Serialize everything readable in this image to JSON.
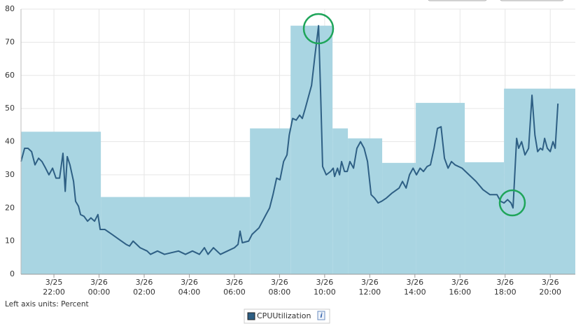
{
  "chart_data": {
    "type": "line",
    "axis_note": "Left axis units: Percent",
    "xlim": [
      20.54,
      45.11
    ],
    "ylim": [
      0,
      80
    ],
    "yticks": [
      0,
      10,
      20,
      30,
      40,
      50,
      60,
      70,
      80
    ],
    "xticks": [
      {
        "value": 22,
        "label": "3/25 22:00"
      },
      {
        "value": 24,
        "label": "3/26 00:00"
      },
      {
        "value": 26,
        "label": "3/26 02:00"
      },
      {
        "value": 28,
        "label": "3/26 04:00"
      },
      {
        "value": 30,
        "label": "3/26 06:00"
      },
      {
        "value": 32,
        "label": "3/26 08:00"
      },
      {
        "value": 34,
        "label": "3/26 10:00"
      },
      {
        "value": 36,
        "label": "3/26 12:00"
      },
      {
        "value": 38,
        "label": "3/26 14:00"
      },
      {
        "value": 40,
        "label": "3/26 16:00"
      },
      {
        "value": 42,
        "label": "3/26 18:00"
      },
      {
        "value": 44,
        "label": "3/26 20:00"
      }
    ],
    "grid": true,
    "step_area": {
      "color": "#a9d5e2",
      "edges": [
        20.54,
        24.08,
        30.69,
        32.49,
        34.35,
        35.03,
        36.55,
        38.04,
        40.21,
        41.95,
        45.11
      ],
      "values": [
        43,
        23.3,
        44,
        75,
        44,
        41,
        33.6,
        51.7,
        33.8,
        56
      ]
    },
    "x": [
      20.54,
      20.7,
      20.85,
      21.01,
      21.16,
      21.32,
      21.47,
      21.63,
      21.78,
      21.94,
      22.09,
      22.25,
      22.4,
      22.5,
      22.59,
      22.71,
      22.87,
      22.96,
      23.09,
      23.18,
      23.33,
      23.49,
      23.64,
      23.8,
      23.95,
      24.05,
      24.26,
      24.58,
      24.89,
      25.2,
      25.35,
      25.51,
      25.82,
      26.13,
      26.28,
      26.59,
      26.9,
      27.21,
      27.52,
      27.83,
      28.14,
      28.45,
      28.67,
      28.83,
      29.07,
      29.38,
      29.69,
      30.0,
      30.16,
      30.25,
      30.35,
      30.63,
      30.78,
      31.09,
      31.4,
      31.56,
      31.71,
      31.87,
      32.02,
      32.18,
      32.33,
      32.43,
      32.58,
      32.74,
      32.89,
      33.01,
      33.14,
      33.26,
      33.42,
      33.57,
      33.73,
      33.82,
      33.91,
      34.07,
      34.26,
      34.38,
      34.44,
      34.57,
      34.66,
      34.75,
      34.88,
      35.0,
      35.12,
      35.28,
      35.43,
      35.59,
      35.75,
      35.9,
      36.06,
      36.21,
      36.37,
      36.52,
      36.74,
      36.99,
      37.3,
      37.45,
      37.61,
      37.76,
      37.92,
      38.07,
      38.23,
      38.38,
      38.54,
      38.69,
      38.85,
      39.0,
      39.16,
      39.31,
      39.47,
      39.62,
      39.78,
      40.09,
      40.4,
      40.71,
      41.02,
      41.33,
      41.64,
      41.8,
      41.95,
      42.11,
      42.26,
      42.35,
      42.51,
      42.6,
      42.73,
      42.88,
      43.04,
      43.19,
      43.32,
      43.44,
      43.56,
      43.66,
      43.75,
      43.87,
      44.0,
      44.12,
      44.22,
      44.34
    ],
    "series": [
      {
        "name": "CPUUtilization",
        "color": "#2e5f84",
        "values": [
          34,
          38,
          38,
          37,
          33,
          35,
          34,
          32,
          30,
          32,
          29,
          29,
          36.5,
          25,
          35.5,
          33,
          28,
          22,
          20.5,
          18,
          17.5,
          16,
          17,
          16,
          18,
          13.5,
          13.5,
          12,
          10.5,
          9,
          8.5,
          10,
          8,
          7,
          6,
          7,
          6,
          6.5,
          7,
          6,
          7,
          6,
          8,
          6,
          8,
          6,
          7,
          8,
          9,
          13,
          9.5,
          10,
          12,
          14,
          18,
          20,
          24,
          29,
          28.5,
          34,
          36,
          42,
          47,
          46.5,
          48,
          47,
          50,
          53,
          57,
          66,
          75,
          55,
          32.5,
          30,
          31,
          32,
          29.5,
          32,
          30,
          34,
          31,
          31,
          34,
          32,
          38,
          40,
          38,
          34,
          24,
          23,
          21.5,
          22,
          23,
          24.5,
          26,
          28,
          26,
          30,
          32,
          30,
          32,
          31,
          32.5,
          33,
          38,
          44,
          44.5,
          35,
          32,
          34,
          33,
          32,
          30,
          28,
          25.5,
          24,
          24,
          22,
          21.5,
          22.5,
          21.5,
          20,
          41,
          38,
          40,
          36,
          38,
          54,
          42,
          37,
          38,
          37.5,
          41,
          38,
          37,
          40,
          38,
          51.5
        ]
      }
    ]
  }
}
